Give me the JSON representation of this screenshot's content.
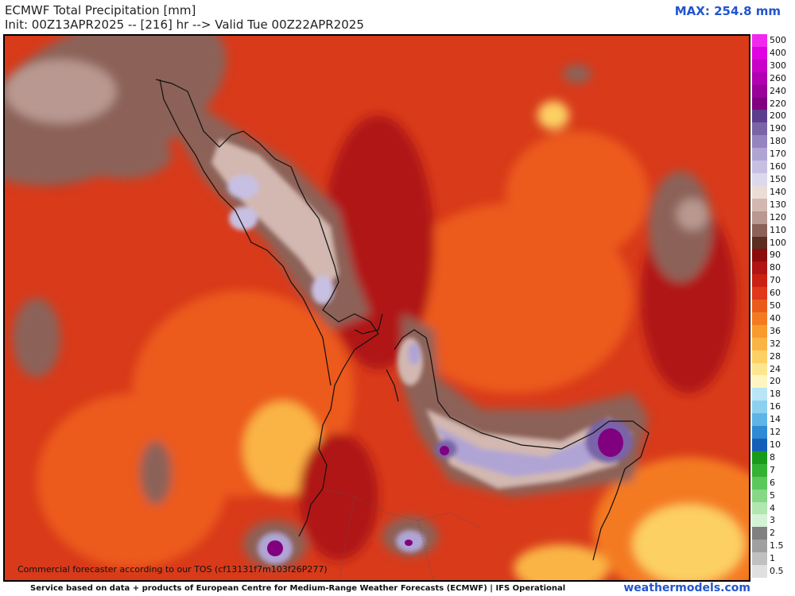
{
  "header": {
    "title": "ECMWF Total Precipitation [mm]",
    "subtitle": "Init: 00Z13APR2025 -- [216] hr --> Valid Tue 00Z22APR2025",
    "max_label": "MAX: 254.8 mm"
  },
  "legend": {
    "levels": [
      {
        "label": "500",
        "color": "#f028f0"
      },
      {
        "label": "400",
        "color": "#e000e0"
      },
      {
        "label": "300",
        "color": "#c800c8"
      },
      {
        "label": "260",
        "color": "#b000b0"
      },
      {
        "label": "240",
        "color": "#980098"
      },
      {
        "label": "220",
        "color": "#800080"
      },
      {
        "label": "200",
        "color": "#5c3c8c"
      },
      {
        "label": "190",
        "color": "#7a64a8"
      },
      {
        "label": "180",
        "color": "#9684c0"
      },
      {
        "label": "170",
        "color": "#b0a4d4"
      },
      {
        "label": "160",
        "color": "#c8c0e2"
      },
      {
        "label": "150",
        "color": "#dcd8ee"
      },
      {
        "label": "140",
        "color": "#ecdcd8"
      },
      {
        "label": "130",
        "color": "#d2b8b0"
      },
      {
        "label": "120",
        "color": "#b89890"
      },
      {
        "label": "110",
        "color": "#8c6258"
      },
      {
        "label": "100",
        "color": "#5c2e22"
      },
      {
        "label": "90",
        "color": "#8c0c0c"
      },
      {
        "label": "80",
        "color": "#b01414"
      },
      {
        "label": "70",
        "color": "#cc2010"
      },
      {
        "label": "60",
        "color": "#e0381a"
      },
      {
        "label": "50",
        "color": "#ec5a1a"
      },
      {
        "label": "40",
        "color": "#f47a20"
      },
      {
        "label": "36",
        "color": "#f89a2c"
      },
      {
        "label": "32",
        "color": "#fab444"
      },
      {
        "label": "28",
        "color": "#fcd064"
      },
      {
        "label": "24",
        "color": "#fde690"
      },
      {
        "label": "20",
        "color": "#fef6c0"
      },
      {
        "label": "18",
        "color": "#b8e6f6"
      },
      {
        "label": "16",
        "color": "#8cd0f0"
      },
      {
        "label": "14",
        "color": "#5eb4e6"
      },
      {
        "label": "12",
        "color": "#2e8ad4"
      },
      {
        "label": "10",
        "color": "#1460b8"
      },
      {
        "label": "8",
        "color": "#1a9a1a"
      },
      {
        "label": "7",
        "color": "#34b234"
      },
      {
        "label": "6",
        "color": "#5cc85c"
      },
      {
        "label": "5",
        "color": "#86d886"
      },
      {
        "label": "4",
        "color": "#b0e6b0"
      },
      {
        "label": "3",
        "color": "#d4f2d4"
      },
      {
        "label": "2",
        "color": "#808080"
      },
      {
        "label": "1.5",
        "color": "#a0a0a0"
      },
      {
        "label": "1",
        "color": "#c0c0c0"
      },
      {
        "label": "0.5",
        "color": "#e0e0e0"
      }
    ]
  },
  "note": "Commercial forecaster according to our TOS (cf13131f7m103f26P277)",
  "footer": "Service based on data + products of European Centre for Medium-Range Weather Forecasts (ECMWF) | IFS Operational",
  "site": "weathermodels.com"
}
